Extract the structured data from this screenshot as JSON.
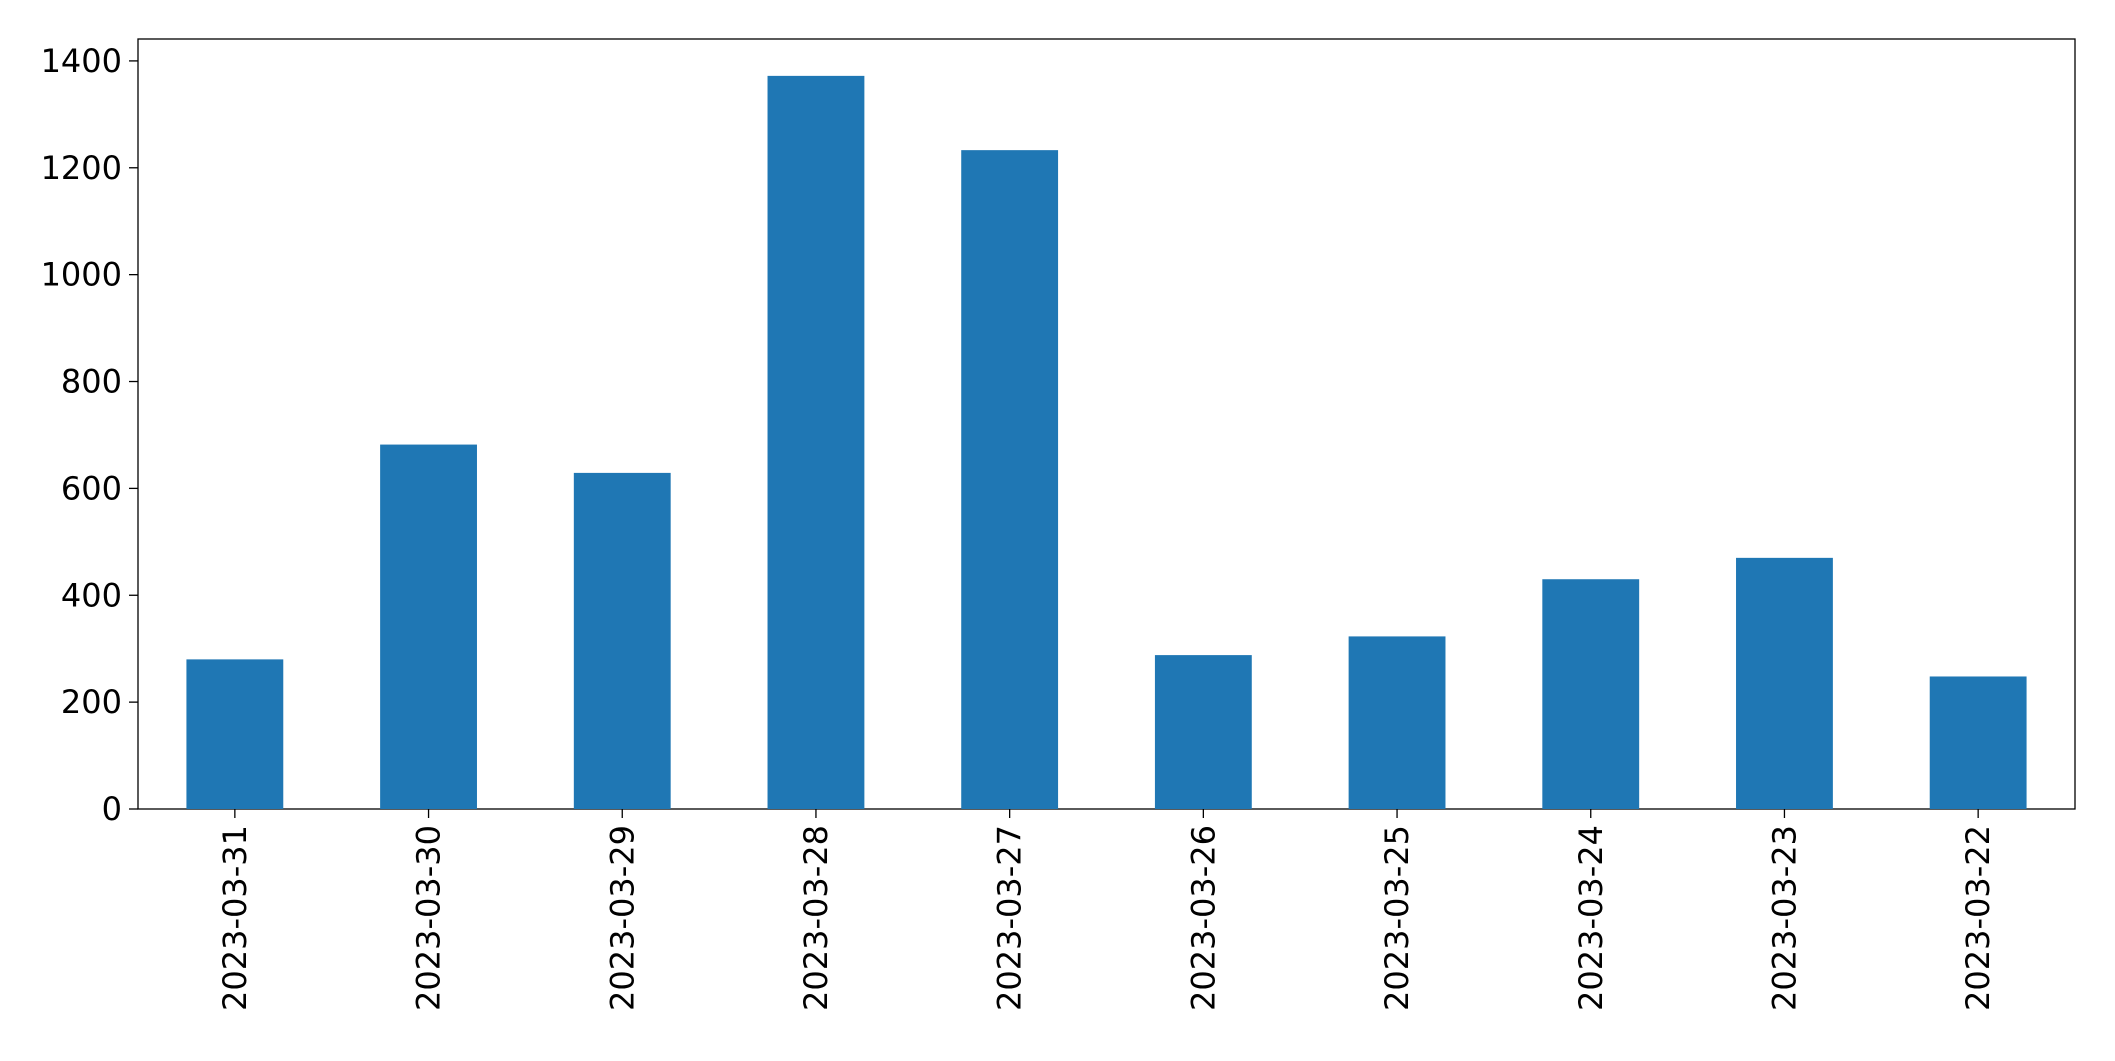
{
  "chart_data": {
    "type": "bar",
    "categories": [
      "2023-03-31",
      "2023-03-30",
      "2023-03-29",
      "2023-03-28",
      "2023-03-27",
      "2023-03-26",
      "2023-03-25",
      "2023-03-24",
      "2023-03-23",
      "2023-03-22"
    ],
    "values": [
      280,
      682,
      629,
      1372,
      1233,
      288,
      323,
      430,
      470,
      248
    ],
    "color": "#1f77b4",
    "ylim": [
      0,
      1441
    ],
    "yticks": [
      0,
      200,
      400,
      600,
      800,
      1000,
      1200,
      1400
    ],
    "grid": false
  }
}
